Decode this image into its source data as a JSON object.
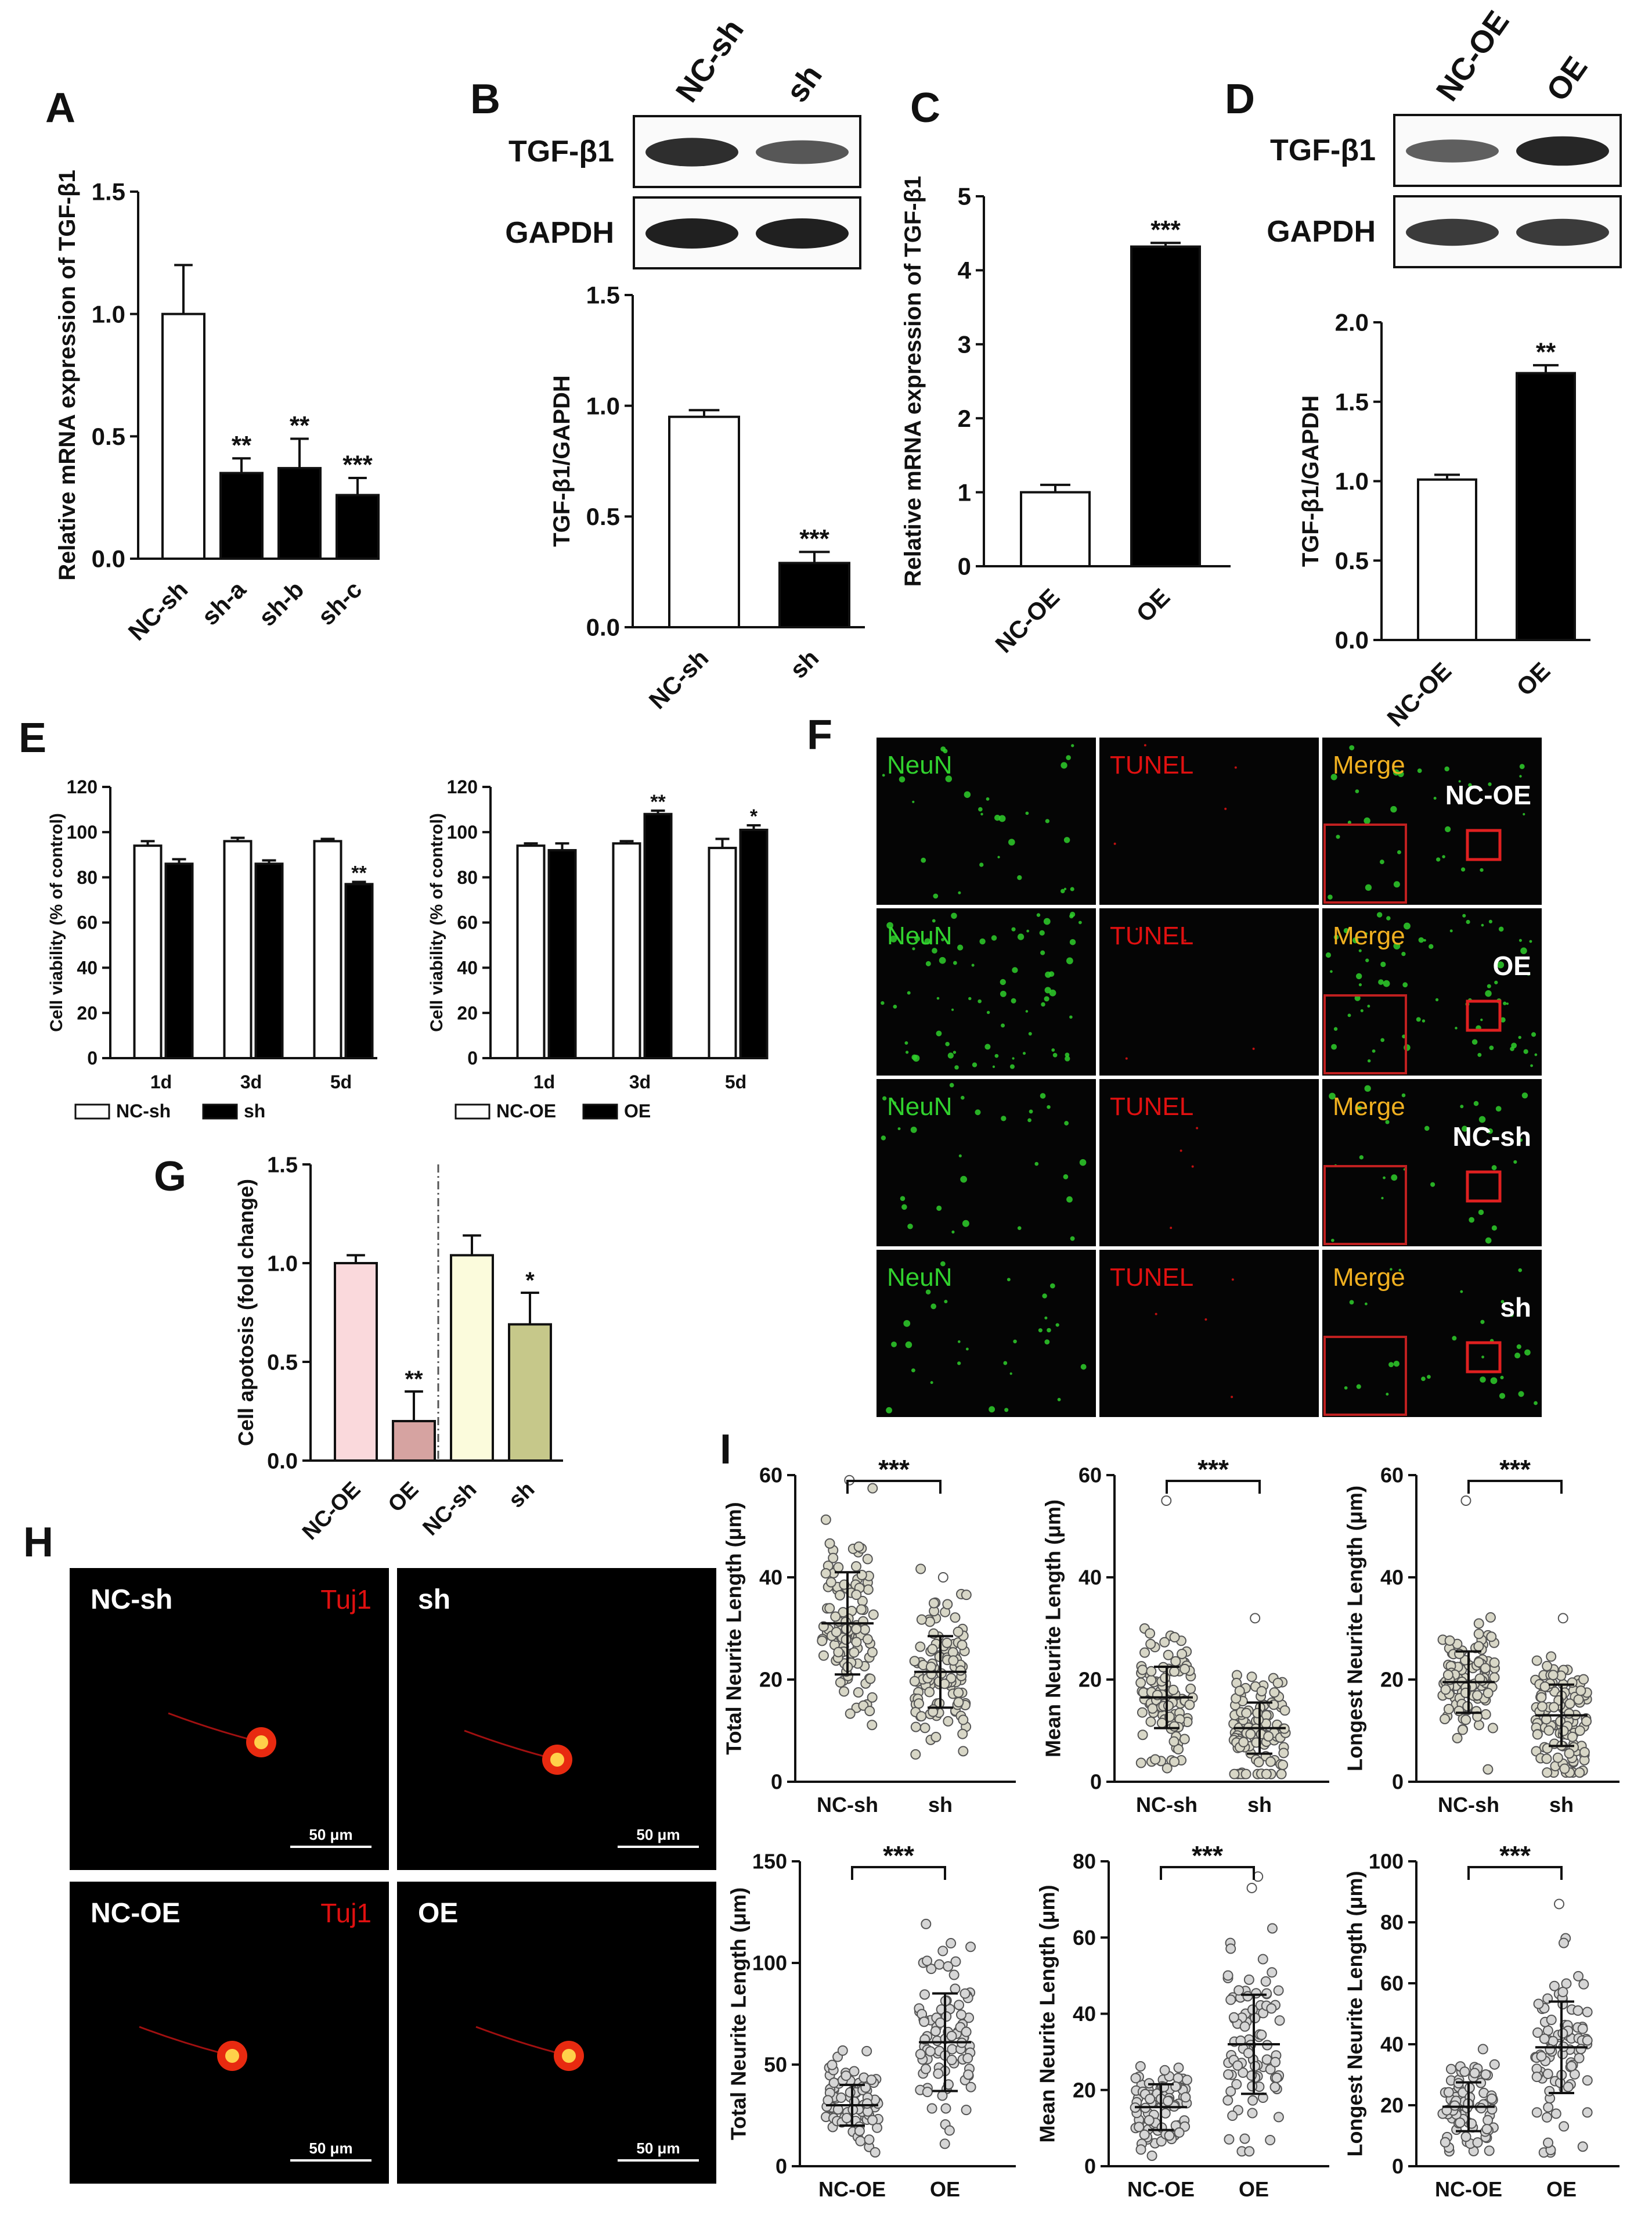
{
  "panels": {
    "A": "A",
    "B": "B",
    "C": "C",
    "D": "D",
    "E": "E",
    "F": "F",
    "G": "G",
    "H": "H",
    "I": "I"
  },
  "blots": {
    "B": {
      "lanes": [
        "NC-sh",
        "sh"
      ],
      "rows": [
        "TGF-β1",
        "GAPDH"
      ],
      "intensity": [
        [
          0.9,
          0.6
        ],
        [
          1.0,
          1.0
        ]
      ]
    },
    "D": {
      "lanes": [
        "NC-OE",
        "OE"
      ],
      "rows": [
        "TGF-β1",
        "GAPDH"
      ],
      "intensity": [
        [
          0.55,
          0.95
        ],
        [
          0.8,
          0.8
        ]
      ]
    }
  },
  "micro": {
    "F": {
      "cols": [
        "NeuN",
        "TUNEL",
        "Merge"
      ],
      "rows": [
        "NC-OE",
        "OE",
        "NC-sh",
        "sh"
      ],
      "colors": {
        "NeuN": "#31d12e",
        "TUNEL": "#e01010",
        "Merge": "#f0b020"
      }
    },
    "H": {
      "tiles": [
        {
          "label": "NC-sh",
          "marker": "Tuj1",
          "scale": "50 μm"
        },
        {
          "label": "sh",
          "marker": "",
          "scale": "50 μm"
        },
        {
          "label": "NC-OE",
          "marker": "Tuj1",
          "scale": "50 μm"
        },
        {
          "label": "OE",
          "marker": "",
          "scale": "50 μm"
        }
      ]
    }
  },
  "chart_data": [
    {
      "id": "A",
      "type": "bar",
      "categories": [
        "NC-sh",
        "sh-a",
        "sh-b",
        "sh-c"
      ],
      "values": [
        1.0,
        0.35,
        0.37,
        0.26
      ],
      "errors": [
        0.2,
        0.06,
        0.12,
        0.07
      ],
      "fills": [
        "#ffffff",
        "#000000",
        "#000000",
        "#000000"
      ],
      "significance": [
        "",
        "**",
        "**",
        "***"
      ],
      "ylabel": "Relative mRNA expression of TGF-β1",
      "ylim": [
        0,
        1.5
      ],
      "yticks": [
        "0.0",
        "0.5",
        "1.0",
        "1.5"
      ]
    },
    {
      "id": "B",
      "type": "bar",
      "categories": [
        "NC-sh",
        "sh"
      ],
      "values": [
        0.95,
        0.29
      ],
      "errors": [
        0.03,
        0.05
      ],
      "fills": [
        "#ffffff",
        "#000000"
      ],
      "significance": [
        "",
        "***"
      ],
      "ylabel": "TGF-β1/GAPDH",
      "ylim": [
        0,
        1.5
      ],
      "yticks": [
        "0.0",
        "0.5",
        "1.0",
        "1.5"
      ]
    },
    {
      "id": "C",
      "type": "bar",
      "categories": [
        "NC-OE",
        "OE"
      ],
      "values": [
        1.0,
        4.32
      ],
      "errors": [
        0.1,
        0.05
      ],
      "fills": [
        "#ffffff",
        "#000000"
      ],
      "significance": [
        "",
        "***"
      ],
      "ylabel": "Relative mRNA expression of TGF-β1",
      "ylim": [
        0,
        5
      ],
      "yticks": [
        "0",
        "1",
        "2",
        "3",
        "4",
        "5"
      ]
    },
    {
      "id": "D",
      "type": "bar",
      "categories": [
        "NC-OE",
        "OE"
      ],
      "values": [
        1.01,
        1.68
      ],
      "errors": [
        0.03,
        0.05
      ],
      "fills": [
        "#ffffff",
        "#000000"
      ],
      "significance": [
        "",
        "**"
      ],
      "ylabel": "TGF-β1/GAPDH",
      "ylim": [
        0,
        2.0
      ],
      "yticks": [
        "0.0",
        "0.5",
        "1.0",
        "1.5",
        "2.0"
      ]
    },
    {
      "id": "E1",
      "type": "bar",
      "categories": [
        "1d",
        "3d",
        "5d"
      ],
      "series": [
        {
          "name": "NC-sh",
          "values": [
            94,
            96,
            96
          ],
          "errors": [
            2,
            1.5,
            1
          ]
        },
        {
          "name": "sh",
          "values": [
            86,
            86,
            77
          ],
          "errors": [
            2,
            1.5,
            1
          ]
        }
      ],
      "fills": [
        "#ffffff",
        "#000000"
      ],
      "significance": [
        [
          "",
          ""
        ],
        [
          "",
          ""
        ],
        [
          "",
          "**"
        ]
      ],
      "ylabel": "Cell viability (% of control)",
      "ylim": [
        0,
        120
      ],
      "yticks": [
        "0",
        "20",
        "40",
        "60",
        "80",
        "100",
        "120"
      ]
    },
    {
      "id": "E2",
      "type": "bar",
      "categories": [
        "1d",
        "3d",
        "5d"
      ],
      "series": [
        {
          "name": "NC-OE",
          "values": [
            94,
            95,
            93
          ],
          "errors": [
            1,
            1,
            4
          ]
        },
        {
          "name": "OE",
          "values": [
            92,
            108,
            101
          ],
          "errors": [
            3,
            1.5,
            2
          ]
        }
      ],
      "fills": [
        "#ffffff",
        "#000000"
      ],
      "significance": [
        [
          "",
          ""
        ],
        [
          "",
          "**"
        ],
        [
          "",
          "*"
        ]
      ],
      "ylabel": "Cell viability (% of control)",
      "ylim": [
        0,
        120
      ],
      "yticks": [
        "0",
        "20",
        "40",
        "60",
        "80",
        "100",
        "120"
      ]
    },
    {
      "id": "G",
      "type": "bar",
      "categories": [
        "NC-OE",
        "OE",
        "NC-sh",
        "sh"
      ],
      "values": [
        1.0,
        0.2,
        1.04,
        0.69
      ],
      "errors": [
        0.04,
        0.15,
        0.1,
        0.16
      ],
      "fills": [
        "#fad9dc",
        "#d6a3a1",
        "#fbfbdc",
        "#c6c88a"
      ],
      "significance": [
        "",
        "**",
        "",
        "*"
      ],
      "ylabel": "Cell apotosis (fold change)",
      "ylim": [
        0,
        1.5
      ],
      "yticks": [
        "0.0",
        "0.5",
        "1.0",
        "1.5"
      ]
    },
    {
      "id": "I1",
      "type": "scatter",
      "categories": [
        "NC-sh",
        "sh"
      ],
      "means": [
        31,
        21.5
      ],
      "sds": [
        10,
        7
      ],
      "n": 110,
      "outliers": [
        [
          59
        ],
        [
          40
        ]
      ],
      "ylabel": "Total Neurite Length (μm)",
      "ylim": [
        0,
        60
      ],
      "yticks": [
        "0",
        "20",
        "40",
        "60"
      ],
      "significance": "***"
    },
    {
      "id": "I2",
      "type": "scatter",
      "categories": [
        "NC-sh",
        "sh"
      ],
      "means": [
        16.5,
        10.5
      ],
      "sds": [
        6,
        5
      ],
      "n": 110,
      "outliers": [
        [
          55
        ],
        [
          32
        ]
      ],
      "ylabel": "Mean Neurite Length (μm)",
      "ylim": [
        0,
        60
      ],
      "yticks": [
        "0",
        "20",
        "40",
        "60"
      ],
      "significance": "***"
    },
    {
      "id": "I3",
      "type": "scatter",
      "categories": [
        "NC-sh",
        "sh"
      ],
      "means": [
        19.5,
        13
      ],
      "sds": [
        6,
        6
      ],
      "n": 110,
      "outliers": [
        [
          55
        ],
        [
          32
        ]
      ],
      "ylabel": "Longest Neurite Length (μm)",
      "ylim": [
        0,
        60
      ],
      "yticks": [
        "0",
        "20",
        "40",
        "60"
      ],
      "significance": "***"
    },
    {
      "id": "I4",
      "type": "scatter",
      "categories": [
        "NC-OE",
        "OE"
      ],
      "means": [
        30,
        61
      ],
      "sds": [
        10,
        24
      ],
      "n": 90,
      "outliers": [
        [],
        []
      ],
      "ylabel": "Total Neurite Length (μm)",
      "ylim": [
        0,
        150
      ],
      "yticks": [
        "0",
        "50",
        "100",
        "150"
      ],
      "significance": "***"
    },
    {
      "id": "I5",
      "type": "scatter",
      "categories": [
        "NC-OE",
        "OE"
      ],
      "means": [
        15.5,
        32
      ],
      "sds": [
        6,
        13
      ],
      "n": 90,
      "outliers": [
        [],
        [
          76,
          73
        ]
      ],
      "ylabel": "Mean Neurite Length (μm)",
      "ylim": [
        0,
        80
      ],
      "yticks": [
        "0",
        "20",
        "40",
        "60",
        "80"
      ],
      "significance": "***"
    },
    {
      "id": "I6",
      "type": "scatter",
      "categories": [
        "NC-OE",
        "OE"
      ],
      "means": [
        19.5,
        39
      ],
      "sds": [
        8,
        15
      ],
      "n": 90,
      "outliers": [
        [],
        [
          86
        ]
      ],
      "ylabel": "Longest Neurite Length (μm)",
      "ylim": [
        0,
        100
      ],
      "yticks": [
        "0",
        "20",
        "40",
        "60",
        "80",
        "100"
      ],
      "significance": "***"
    }
  ]
}
